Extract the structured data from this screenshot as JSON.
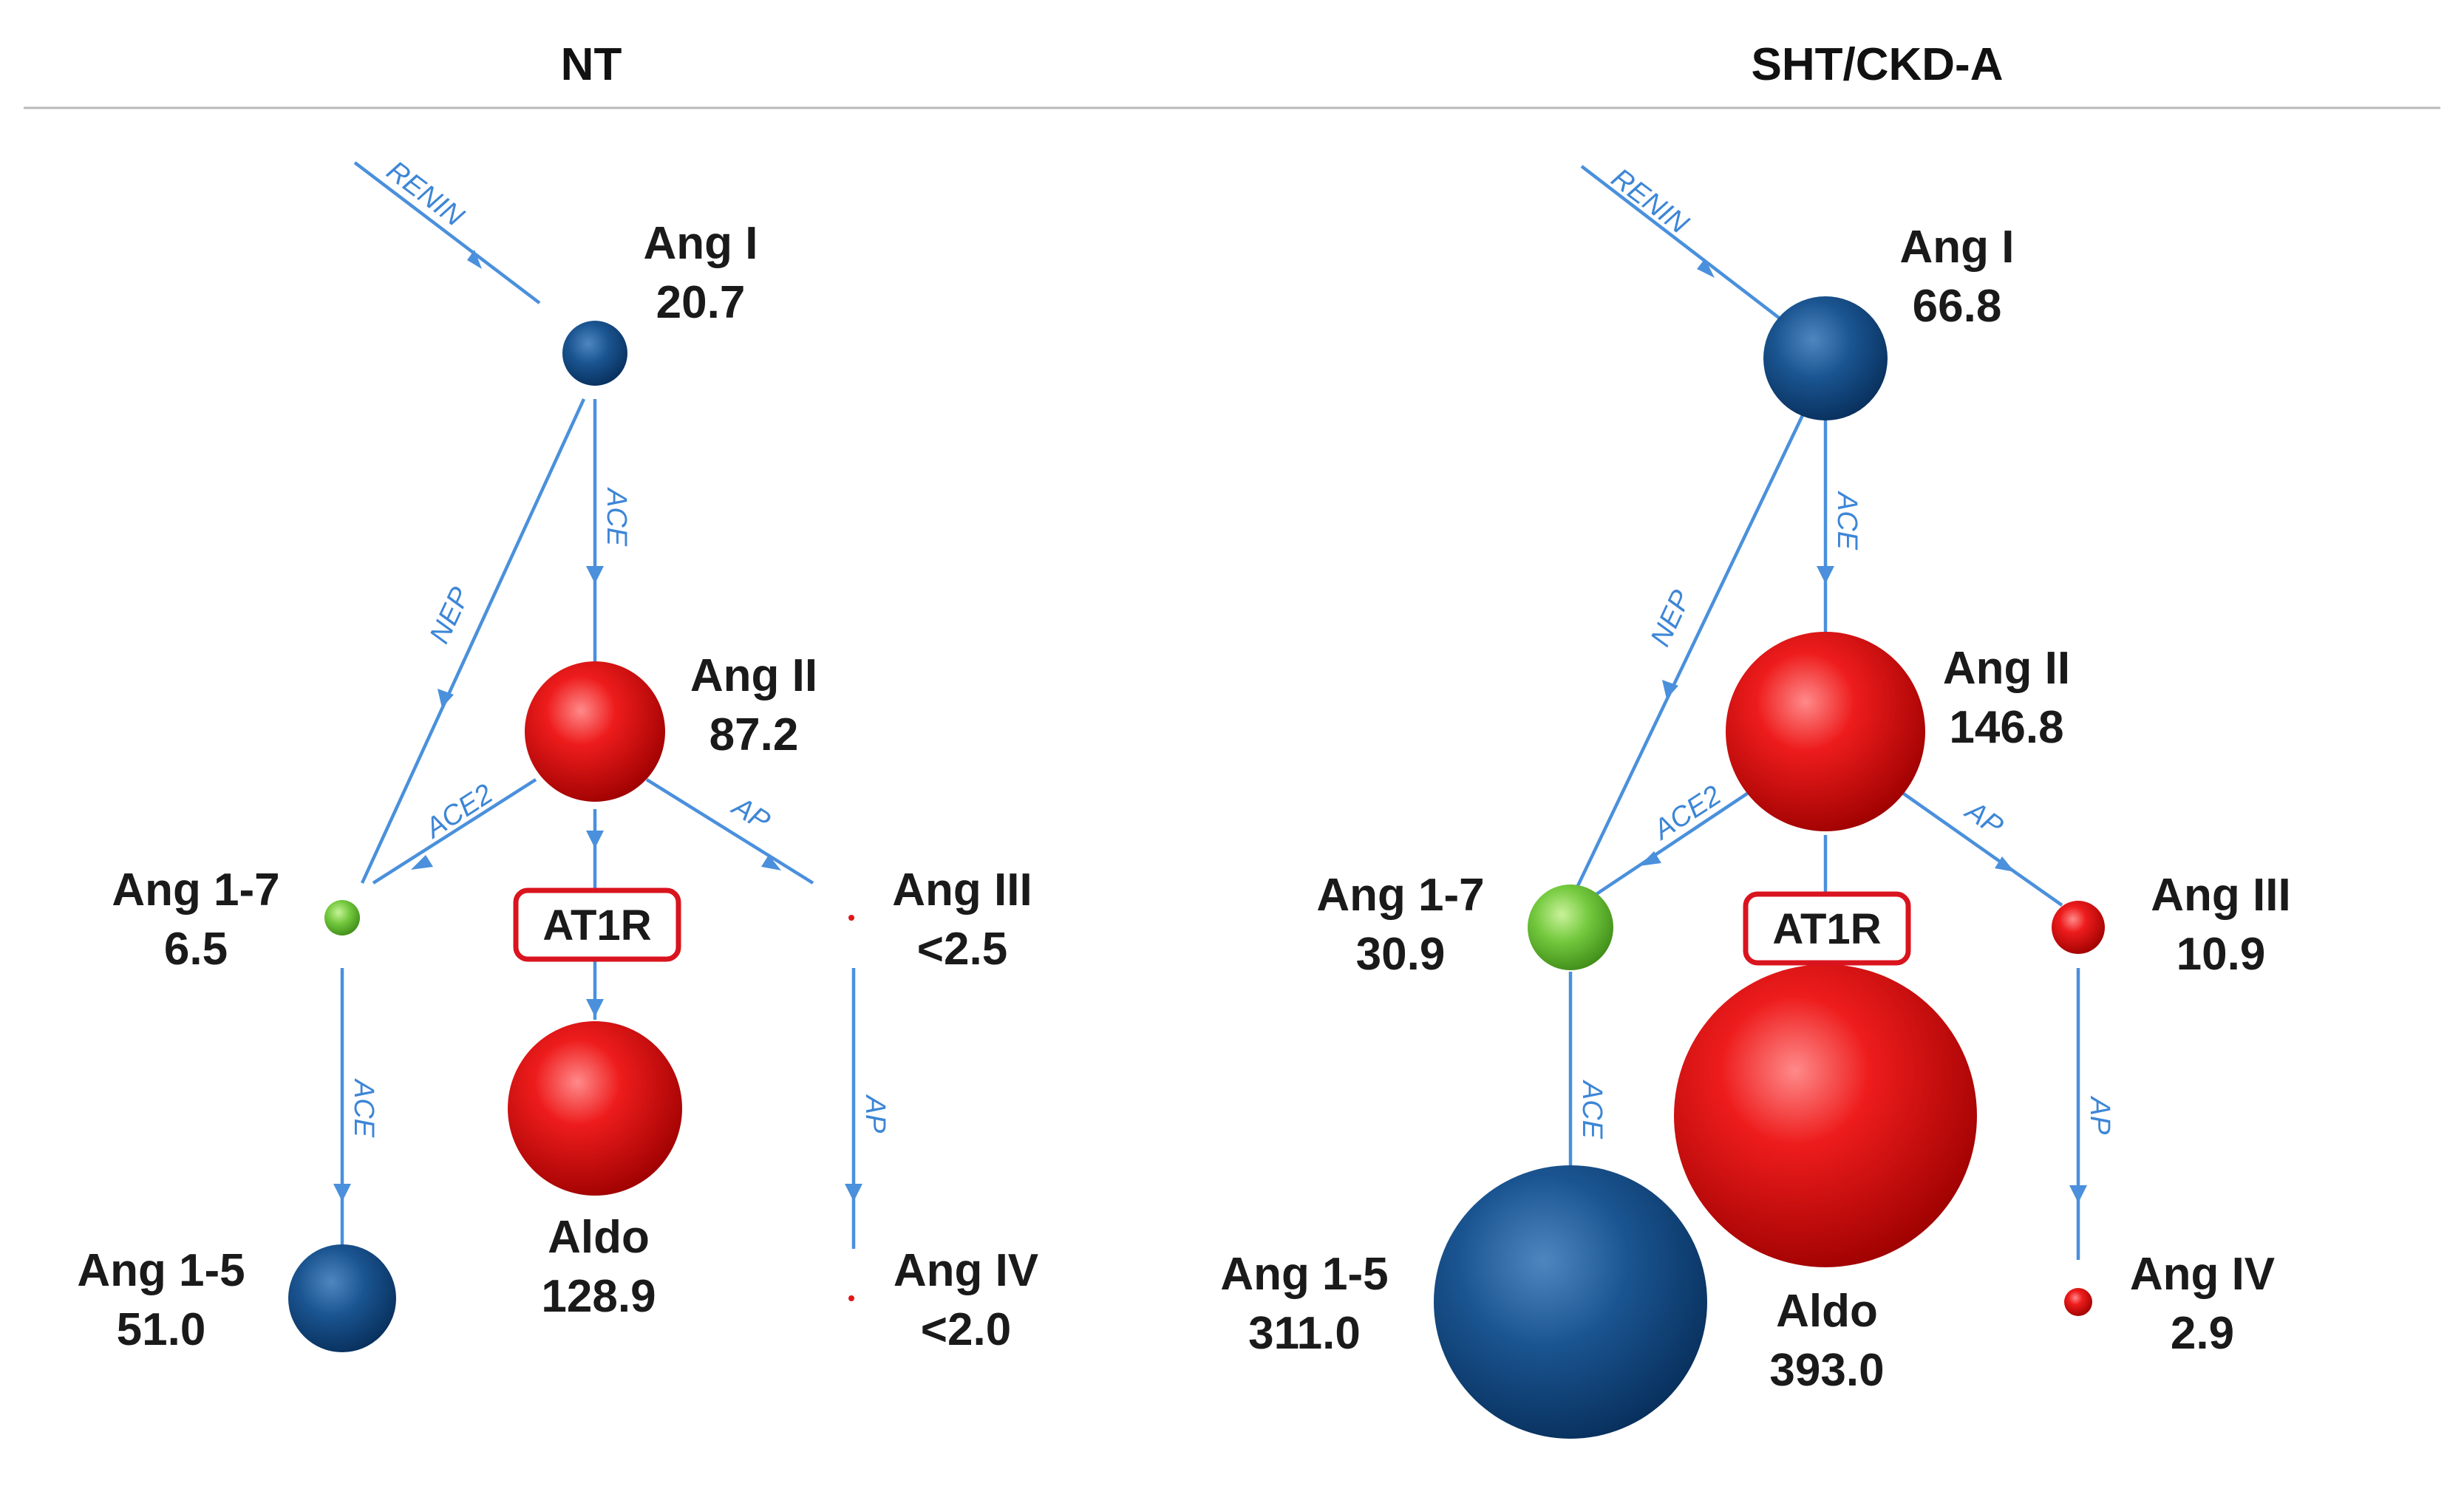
{
  "panels": [
    {
      "title": "NT",
      "receptor": "AT1R",
      "nodes": {
        "ang1": {
          "name": "Ang I",
          "value": "20.7",
          "color": "blue"
        },
        "ang2": {
          "name": "Ang II",
          "value": "87.2",
          "color": "red"
        },
        "ang17": {
          "name": "Ang 1-7",
          "value": "6.5",
          "color": "green"
        },
        "ang3": {
          "name": "Ang III",
          "value": "<2.5",
          "color": "red"
        },
        "ang15": {
          "name": "Ang 1-5",
          "value": "51.0",
          "color": "blue"
        },
        "aldo": {
          "name": "Aldo",
          "value": "128.9",
          "color": "red"
        },
        "ang4": {
          "name": "Ang IV",
          "value": "<2.0",
          "color": "red"
        }
      },
      "enzymes": {
        "renin": "RENIN",
        "ace_main": "ACE",
        "nep": "NEP",
        "ace2": "ACE2",
        "ap1": "AP",
        "ace_lower": "ACE",
        "ap2": "AP"
      }
    },
    {
      "title": "SHT/CKD-A",
      "receptor": "AT1R",
      "nodes": {
        "ang1": {
          "name": "Ang I",
          "value": "66.8",
          "color": "blue"
        },
        "ang2": {
          "name": "Ang II",
          "value": "146.8",
          "color": "red"
        },
        "ang17": {
          "name": "Ang 1-7",
          "value": "30.9",
          "color": "green"
        },
        "ang3": {
          "name": "Ang III",
          "value": "10.9",
          "color": "red"
        },
        "ang15": {
          "name": "Ang 1-5",
          "value": "311.0",
          "color": "blue"
        },
        "aldo": {
          "name": "Aldo",
          "value": "393.0",
          "color": "red"
        },
        "ang4": {
          "name": "Ang IV",
          "value": "2.9",
          "color": "red"
        }
      },
      "enzymes": {
        "renin": "RENIN",
        "ace_main": "ACE",
        "nep": "NEP",
        "ace2": "ACE2",
        "ap1": "AP",
        "ace_lower": "ACE",
        "ap2": "AP"
      }
    }
  ],
  "colors": {
    "edge": "#4a90dc",
    "enzyme_text": "#3d86d6",
    "receptor_border": "#d9141e",
    "divider": "#b8b8b8"
  }
}
